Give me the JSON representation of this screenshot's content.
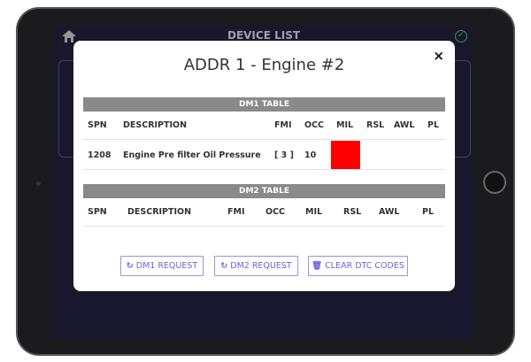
{
  "topbar": {
    "title": "DEVICE LIST",
    "home_icon": "home-icon",
    "status_icon": "check-circle-icon"
  },
  "modal": {
    "title": "ADDR 1 - Engine #2",
    "close_label": "×",
    "dm1": {
      "title": "DM1 TABLE",
      "columns": [
        "SPN",
        "DESCRIPTION",
        "FMI",
        "OCC",
        "MIL",
        "RSL",
        "AWL",
        "PL"
      ],
      "rows": [
        {
          "spn": "1208",
          "description": "Engine Pre filter Oil Pressure",
          "fmi": "[ 3 ]",
          "occ": "10",
          "mil": "on",
          "rsl": "",
          "awl": "",
          "pl": ""
        }
      ]
    },
    "dm2": {
      "title": "DM2 TABLE",
      "columns": [
        "SPN",
        "DESCRIPTION",
        "FMI",
        "OCC",
        "MIL",
        "RSL",
        "AWL",
        "PL"
      ],
      "rows": []
    },
    "buttons": {
      "dm1_request": "DM1 REQUEST",
      "dm2_request": "DM2 REQUEST",
      "clear_dtc": "CLEAR DTC CODES"
    },
    "colors": {
      "mil_active": "#ff0000",
      "button_accent": "#6e64d8",
      "table_header": "#8a8a8a"
    }
  }
}
